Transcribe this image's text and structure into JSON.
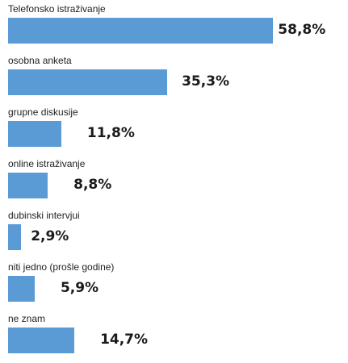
{
  "chart_data": {
    "type": "bar",
    "orientation": "horizontal",
    "categories": [
      "Telefonsko istraživanje",
      "osobna anketa",
      "grupne diskusije",
      "online istraživanje",
      "dubinski intervjui",
      "niti jedno (prošle godine)",
      "ne znam"
    ],
    "values": [
      58.8,
      35.3,
      11.8,
      8.8,
      2.9,
      5.9,
      14.7
    ],
    "value_labels": [
      "58,8%",
      "35,3%",
      "11,8%",
      "8,8%",
      "2,9%",
      "5,9%",
      "14,7%"
    ],
    "title": "",
    "xlabel": "",
    "ylabel": "",
    "xlim": [
      0,
      60
    ],
    "grid": false,
    "legend": "none",
    "bar_color": "#5b9bd5"
  }
}
